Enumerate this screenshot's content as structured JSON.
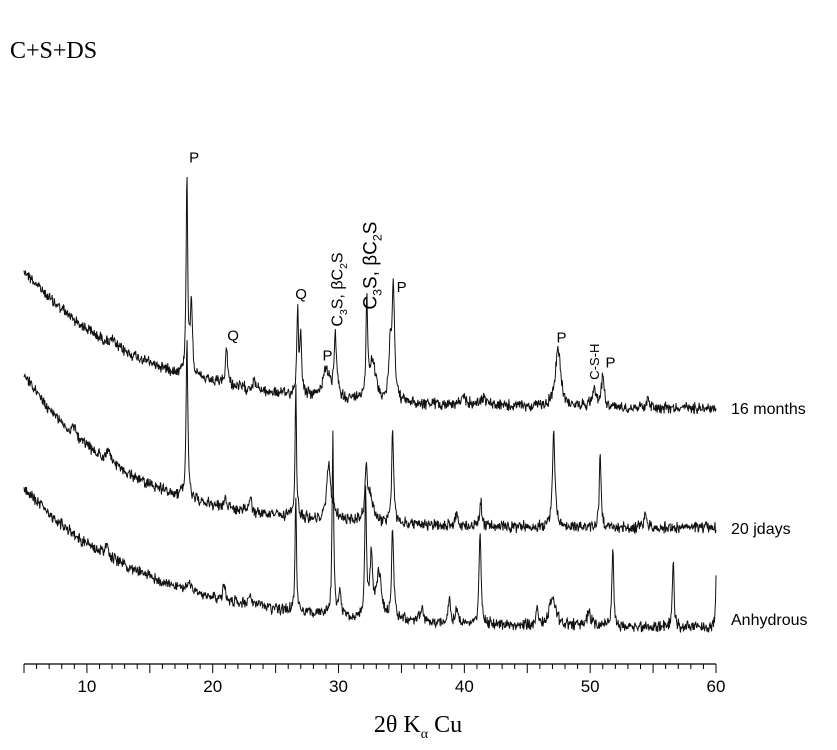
{
  "chart_data": {
    "type": "line",
    "title": "C+S+DS",
    "xlabel_parts": {
      "prefix": "2θ K",
      "sub": "α",
      "suffix": " Cu"
    },
    "xlim": [
      5,
      60
    ],
    "x_ticks": [
      10,
      20,
      30,
      40,
      50,
      60
    ],
    "grid": false,
    "series": [
      {
        "name": "16 months",
        "base": 0,
        "peaks": [
          [
            12.0,
            5,
            0.2
          ],
          [
            17.95,
            205,
            0.07
          ],
          [
            18.3,
            75,
            0.1
          ],
          [
            21.1,
            38,
            0.1
          ],
          [
            23.3,
            10,
            0.15
          ],
          [
            26.75,
            85,
            0.08
          ],
          [
            27.0,
            60,
            0.08
          ],
          [
            29.0,
            30,
            0.3
          ],
          [
            29.75,
            60,
            0.12
          ],
          [
            32.25,
            95,
            0.08
          ],
          [
            32.7,
            40,
            0.3
          ],
          [
            34.35,
            115,
            0.12
          ],
          [
            34.1,
            50,
            0.1
          ],
          [
            40.0,
            6,
            0.3
          ],
          [
            41.5,
            8,
            0.3
          ],
          [
            47.45,
            58,
            0.25
          ],
          [
            50.3,
            18,
            0.2
          ],
          [
            51.0,
            32,
            0.12
          ],
          [
            54.6,
            10,
            0.12
          ]
        ]
      },
      {
        "name": "20 jdays",
        "base": 0,
        "peaks": [
          [
            9.0,
            10,
            0.15
          ],
          [
            11.7,
            12,
            0.2
          ],
          [
            17.95,
            160,
            0.08
          ],
          [
            21.0,
            12,
            0.1
          ],
          [
            23.0,
            15,
            0.1
          ],
          [
            26.6,
            130,
            0.07
          ],
          [
            29.2,
            50,
            0.15
          ],
          [
            29.5,
            15,
            0.3
          ],
          [
            32.2,
            45,
            0.12
          ],
          [
            32.5,
            25,
            0.3
          ],
          [
            34.3,
            95,
            0.09
          ],
          [
            39.4,
            15,
            0.1
          ],
          [
            41.3,
            25,
            0.1
          ],
          [
            47.1,
            95,
            0.12
          ],
          [
            50.8,
            75,
            0.08
          ],
          [
            54.4,
            18,
            0.08
          ]
        ]
      },
      {
        "name": "Anhydrous",
        "base": 0,
        "peaks": [
          [
            11.6,
            14,
            0.1
          ],
          [
            18.1,
            10,
            0.1
          ],
          [
            20.9,
            16,
            0.1
          ],
          [
            23.0,
            10,
            0.1
          ],
          [
            26.6,
            115,
            0.07
          ],
          [
            29.55,
            185,
            0.07
          ],
          [
            30.1,
            25,
            0.1
          ],
          [
            32.15,
            125,
            0.08
          ],
          [
            32.6,
            60,
            0.12
          ],
          [
            33.2,
            45,
            0.25
          ],
          [
            34.3,
            90,
            0.1
          ],
          [
            36.6,
            14,
            0.15
          ],
          [
            38.8,
            25,
            0.1
          ],
          [
            39.4,
            16,
            0.1
          ],
          [
            41.25,
            90,
            0.1
          ],
          [
            45.8,
            16,
            0.1
          ],
          [
            47.0,
            30,
            0.3
          ],
          [
            49.9,
            14,
            0.2
          ],
          [
            51.8,
            82,
            0.08
          ],
          [
            56.6,
            68,
            0.08
          ],
          [
            60.0,
            50,
            0.05
          ]
        ]
      }
    ],
    "annotations": [
      {
        "text": "P",
        "x": 18.2,
        "series": "16 months",
        "rotated": false
      },
      {
        "text": "Q",
        "x": 21.3,
        "series": "16 months",
        "rotated": false
      },
      {
        "text": "Q",
        "x": 26.7,
        "series": "16 months",
        "rotated": false
      },
      {
        "text": "P",
        "x": 28.8,
        "series": "16 months",
        "rotated": false
      },
      {
        "text": "C3S, βC2S",
        "x": 29.9,
        "series": "16 months",
        "rotated": true
      },
      {
        "text": "C3S, βC2S",
        "x": 32.6,
        "series": "16 months",
        "rotated": true
      },
      {
        "text": "P",
        "x": 34.7,
        "series": "16 months",
        "rotated": false
      },
      {
        "text": "P",
        "x": 47.4,
        "series": "16 months",
        "rotated": false
      },
      {
        "text": "C-S-H",
        "x": 50.3,
        "series": "16 months",
        "rotated": true
      },
      {
        "text": "P",
        "x": 51.3,
        "series": "16 months",
        "rotated": false
      }
    ]
  }
}
